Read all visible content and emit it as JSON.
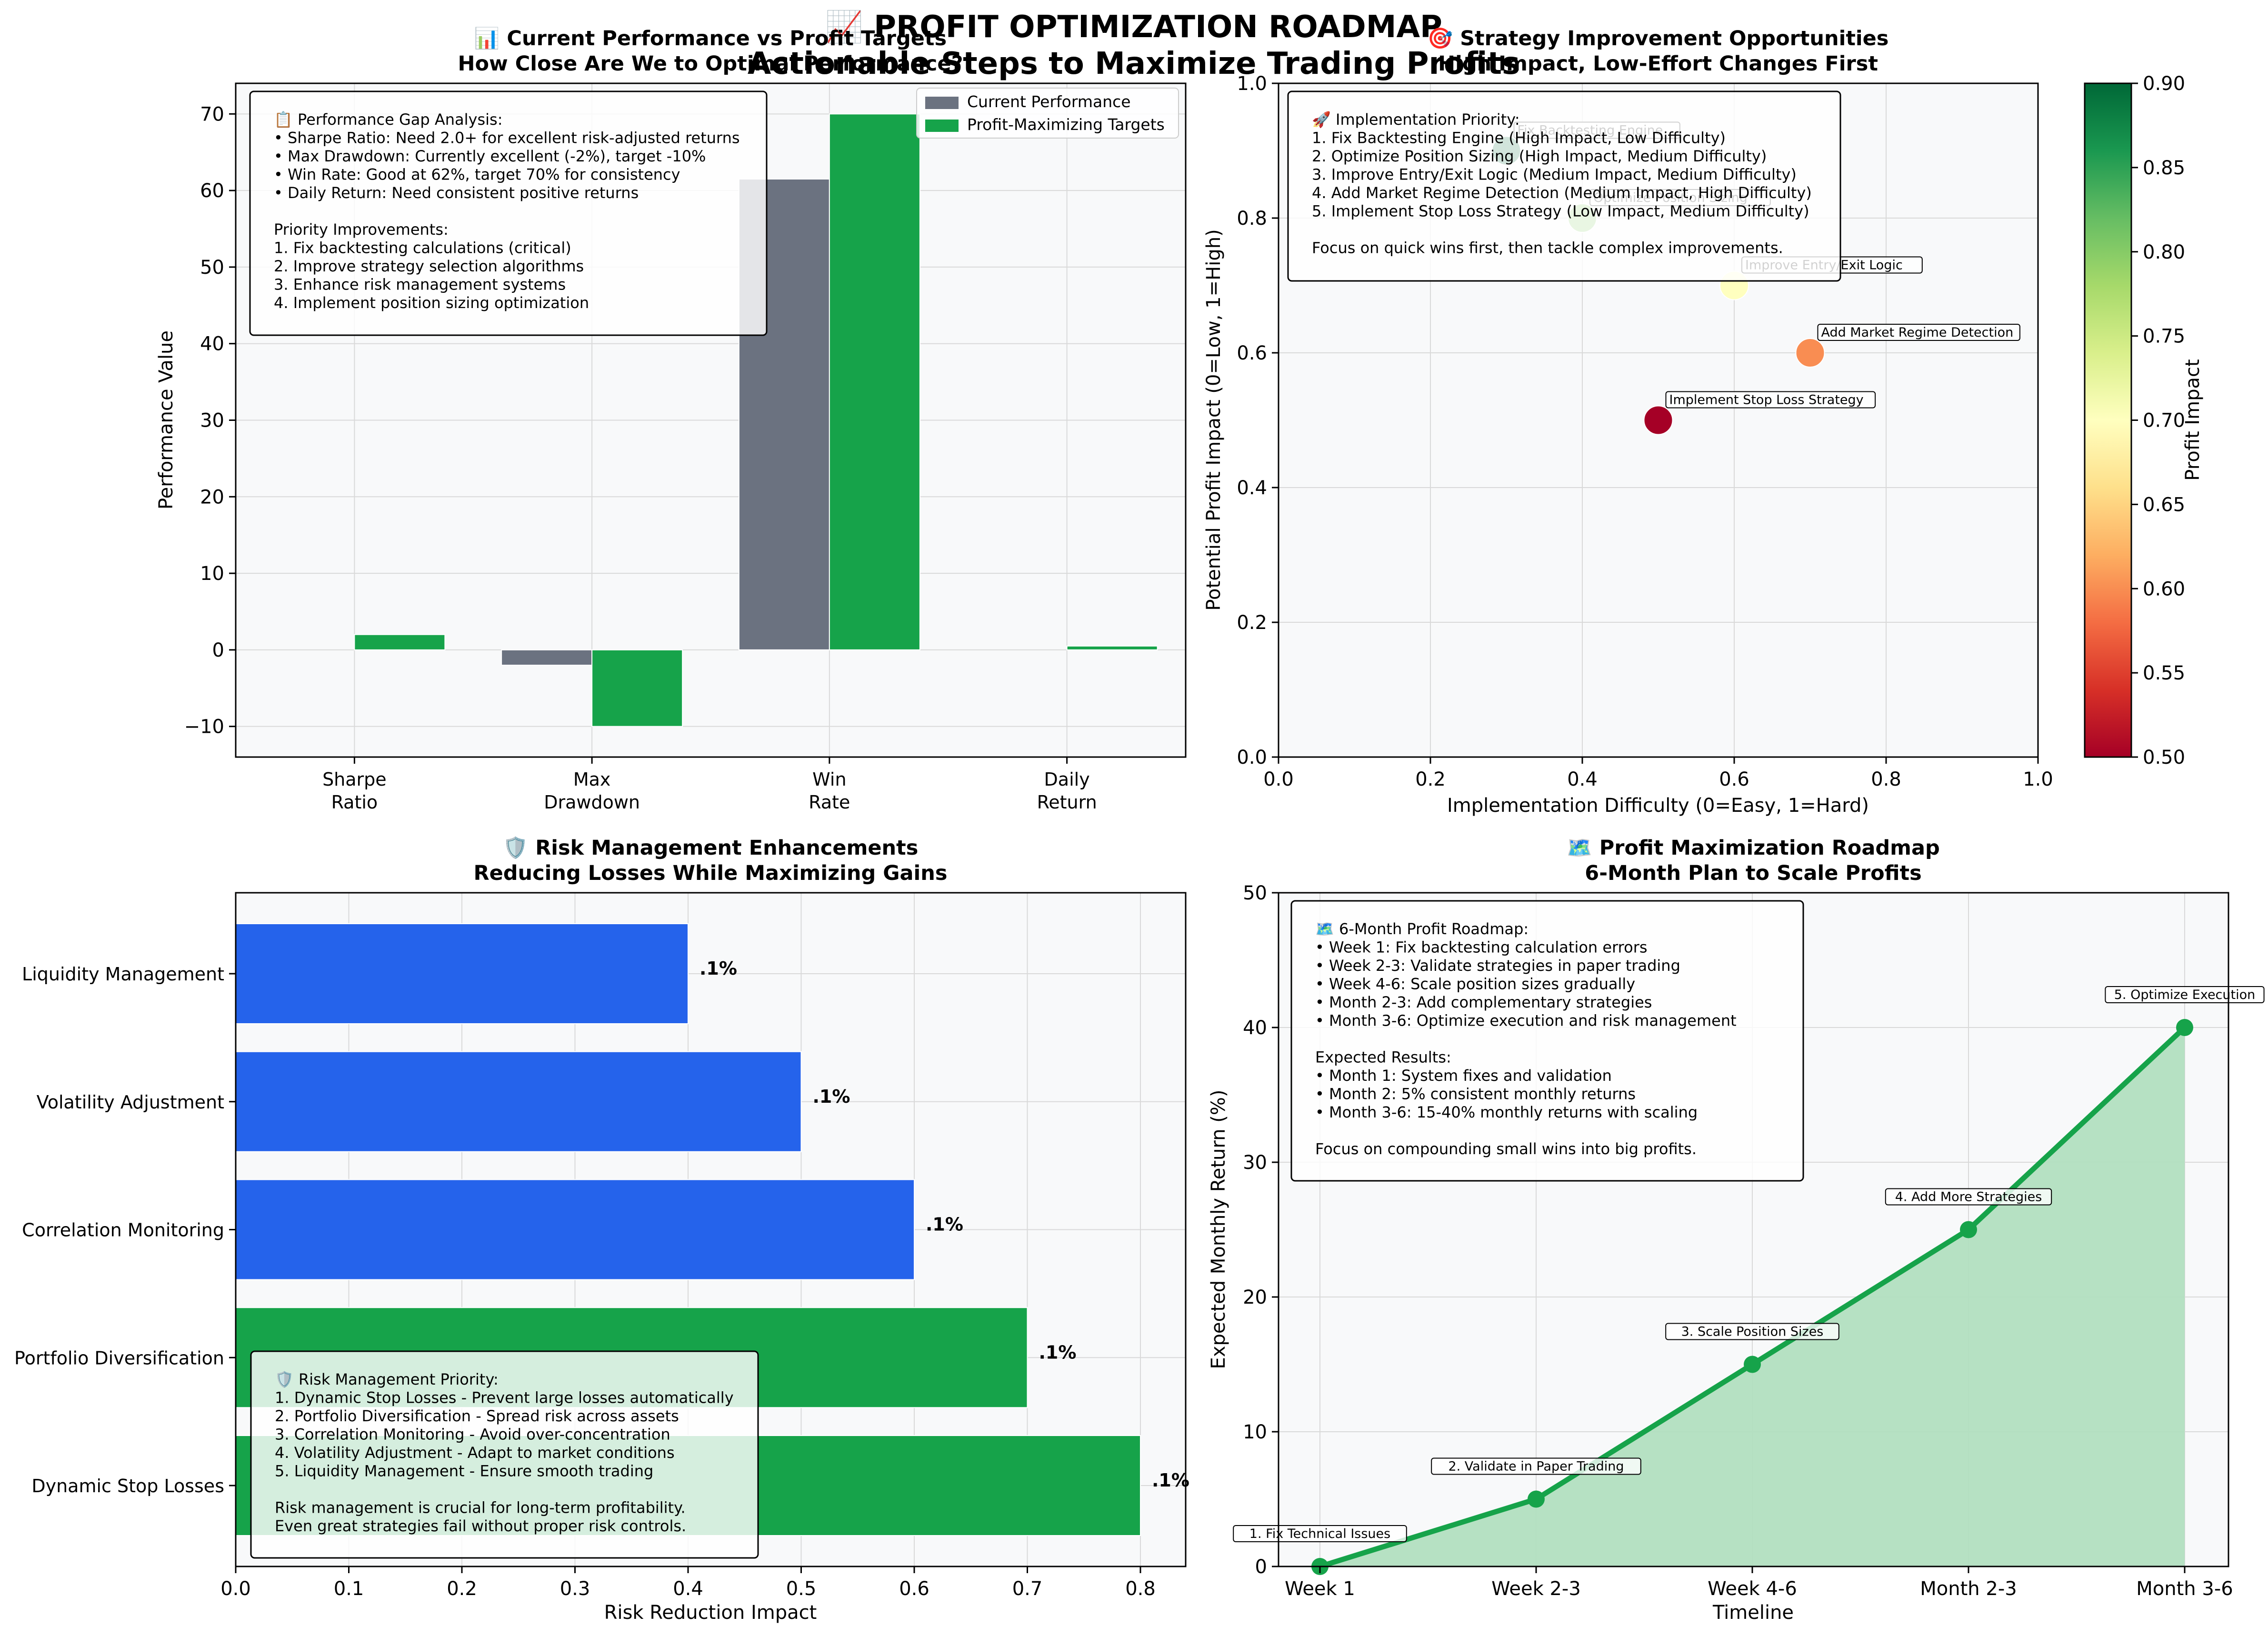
{
  "suptitle": {
    "line1": "📈 PROFIT OPTIMIZATION ROADMAP",
    "line2": "Actionable Steps to Maximize Trading Profits"
  },
  "colors": {
    "current": "#6b7280",
    "target": "#16a34a",
    "blue": "#2563eb",
    "axes_bg": "#f8f9fa",
    "area_fill": "#b2dfc0"
  },
  "chart_data": [
    {
      "id": "performance",
      "type": "bar",
      "title": "📊 Current Performance vs Profit Targets",
      "subtitle": "How Close Are We to Optimal Performance?",
      "xlabel": "",
      "ylabel": "Performance Value",
      "ylim": [
        -14,
        74
      ],
      "yticks": [
        -10,
        0,
        10,
        20,
        30,
        40,
        50,
        60,
        70
      ],
      "ytick_labels": [
        "−10",
        "0",
        "10",
        "20",
        "30",
        "40",
        "50",
        "60",
        "70"
      ],
      "categories": [
        "Sharpe\nRatio",
        "Max\nDrawdown",
        "Win\nRate",
        "Daily\nReturn"
      ],
      "series": [
        {
          "name": "Current Performance",
          "color": "#6b7280",
          "values": [
            0,
            -2,
            61.5,
            0
          ]
        },
        {
          "name": "Profit-Maximizing Targets",
          "color": "#16a34a",
          "values": [
            2,
            -10,
            70,
            0.5
          ]
        }
      ],
      "legend_position": "upper right",
      "grid": true,
      "annotation": "📋 Performance Gap Analysis:\n• Sharpe Ratio: Need 2.0+ for excellent risk-adjusted returns\n• Max Drawdown: Currently excellent (-2%), target -10%\n• Win Rate: Good at 62%, target 70% for consistency\n• Daily Return: Need consistent positive returns\n\nPriority Improvements:\n1. Fix backtesting calculations (critical)\n2. Improve strategy selection algorithms\n3. Enhance risk management systems\n4. Implement position sizing optimization"
    },
    {
      "id": "opportunities",
      "type": "scatter",
      "title": "🎯 Strategy Improvement Opportunities",
      "subtitle": "High Impact, Low-Effort Changes First",
      "xlabel": "Implementation Difficulty (0=Easy, 1=Hard)",
      "ylabel": "Potential Profit Impact (0=Low, 1=High)",
      "xlim": [
        0,
        1
      ],
      "ylim": [
        0,
        1
      ],
      "xticks": [
        0,
        0.2,
        0.4,
        0.6,
        0.8,
        1.0
      ],
      "xtick_labels": [
        "0.0",
        "0.2",
        "0.4",
        "0.6",
        "0.8",
        "1.0"
      ],
      "yticks": [
        0,
        0.2,
        0.4,
        0.6,
        0.8,
        1.0
      ],
      "ytick_labels": [
        "0.0",
        "0.2",
        "0.4",
        "0.6",
        "0.8",
        "1.0"
      ],
      "points": [
        {
          "label": "Fix Backtesting Engine",
          "x": 0.3,
          "y": 0.9,
          "impact": 0.9
        },
        {
          "label": "Optimize Position Sizing",
          "x": 0.4,
          "y": 0.8,
          "impact": 0.8
        },
        {
          "label": "Improve Entry/Exit Logic",
          "x": 0.6,
          "y": 0.7,
          "impact": 0.7
        },
        {
          "label": "Add Market Regime Detection",
          "x": 0.7,
          "y": 0.6,
          "impact": 0.6
        },
        {
          "label": "Implement Stop Loss Strategy",
          "x": 0.5,
          "y": 0.5,
          "impact": 0.5
        }
      ],
      "colorbar": {
        "label": "Profit Impact",
        "range": [
          0.5,
          0.9
        ],
        "ticks": [
          0.5,
          0.55,
          0.6,
          0.65,
          0.7,
          0.75,
          0.8,
          0.85,
          0.9
        ],
        "tick_labels": [
          "0.50",
          "0.55",
          "0.60",
          "0.65",
          "0.70",
          "0.75",
          "0.80",
          "0.85",
          "0.90"
        ],
        "colormap": "RdYlGn"
      },
      "grid": true,
      "annotation": "🚀 Implementation Priority:\n1. Fix Backtesting Engine (High Impact, Low Difficulty)\n2. Optimize Position Sizing (High Impact, Medium Difficulty)\n3. Improve Entry/Exit Logic (Medium Impact, Medium Difficulty)\n4. Add Market Regime Detection (Medium Impact, High Difficulty)\n5. Implement Stop Loss Strategy (Low Impact, Medium Difficulty)\n\nFocus on quick wins first, then tackle complex improvements."
    },
    {
      "id": "risk",
      "type": "bar",
      "orientation": "horizontal",
      "title": "🛡️ Risk Management Enhancements",
      "subtitle": "Reducing Losses While Maximizing Gains",
      "xlabel": "Risk Reduction Impact",
      "ylabel": "",
      "xlim": [
        0,
        0.84
      ],
      "xticks": [
        0,
        0.1,
        0.2,
        0.3,
        0.4,
        0.5,
        0.6,
        0.7,
        0.8
      ],
      "xtick_labels": [
        "0.0",
        "0.1",
        "0.2",
        "0.3",
        "0.4",
        "0.5",
        "0.6",
        "0.7",
        "0.8"
      ],
      "categories": [
        "Dynamic Stop Losses",
        "Portfolio Diversification",
        "Correlation Monitoring",
        "Volatility Adjustment",
        "Liquidity Management"
      ],
      "values": [
        0.8,
        0.7,
        0.6,
        0.5,
        0.4
      ],
      "bar_colors": [
        "#16a34a",
        "#16a34a",
        "#2563eb",
        "#2563eb",
        "#2563eb"
      ],
      "data_labels": [
        ".1%",
        ".1%",
        ".1%",
        ".1%",
        ".1%"
      ],
      "grid": true,
      "annotation": "🛡️ Risk Management Priority:\n1. Dynamic Stop Losses - Prevent large losses automatically\n2. Portfolio Diversification - Spread risk across assets\n3. Correlation Monitoring - Avoid over-concentration\n4. Volatility Adjustment - Adapt to market conditions\n5. Liquidity Management - Ensure smooth trading\n\nRisk management is crucial for long-term profitability.\nEven great strategies fail without proper risk controls."
    },
    {
      "id": "roadmap",
      "type": "line",
      "title": "🗺️ Profit Maximization Roadmap",
      "subtitle": "6-Month Plan to Scale Profits",
      "xlabel": "Timeline",
      "ylabel": "Expected Monthly Return (%)",
      "ylim": [
        0,
        50
      ],
      "yticks": [
        0,
        10,
        20,
        30,
        40,
        50
      ],
      "ytick_labels": [
        "0",
        "10",
        "20",
        "30",
        "40",
        "50"
      ],
      "categories": [
        "Week 1",
        "Week 2-3",
        "Week 4-6",
        "Month 2-3",
        "Month 3-6"
      ],
      "values": [
        0,
        5,
        15,
        25,
        40
      ],
      "point_labels": [
        "1. Fix Technical Issues",
        "2. Validate in Paper Trading",
        "3. Scale Position Sizes",
        "4. Add More Strategies",
        "5. Optimize Execution"
      ],
      "grid": true,
      "annotation": "🗺️ 6-Month Profit Roadmap:\n• Week 1: Fix backtesting calculation errors\n• Week 2-3: Validate strategies in paper trading\n• Week 4-6: Scale position sizes gradually\n• Month 2-3: Add complementary strategies\n• Month 3-6: Optimize execution and risk management\n\nExpected Results:\n• Month 1: System fixes and validation\n• Month 2: 5% consistent monthly returns\n• Month 3-6: 15-40% monthly returns with scaling\n\nFocus on compounding small wins into big profits."
    }
  ]
}
